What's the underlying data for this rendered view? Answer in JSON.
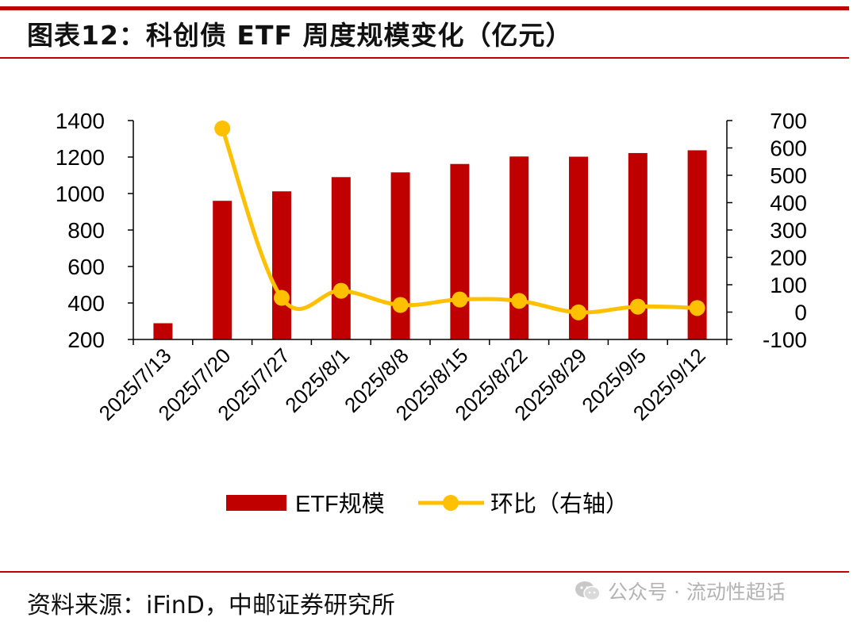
{
  "header": {
    "title": "图表12：科创债 ETF 周度规模变化（亿元）"
  },
  "chart_data": {
    "type": "bar+line",
    "categories": [
      "2025/7/13",
      "2025/7/20",
      "2025/7/27",
      "2025/8/1",
      "2025/8/8",
      "2025/8/15",
      "2025/8/22",
      "2025/8/29",
      "2025/9/5",
      "2025/9/12"
    ],
    "series": [
      {
        "name": "ETF规模",
        "type": "bar",
        "axis": "left",
        "color": "#c00000",
        "values": [
          289,
          960,
          1012,
          1090,
          1116,
          1162,
          1203,
          1202,
          1222,
          1237
        ]
      },
      {
        "name": "环比（右轴）",
        "type": "line",
        "axis": "right",
        "color": "#ffc000",
        "values": [
          null,
          671,
          52,
          78,
          26,
          46,
          41,
          -1,
          20,
          15
        ]
      }
    ],
    "left_axis": {
      "min": 200,
      "max": 1400,
      "ticks": [
        200,
        400,
        600,
        800,
        1000,
        1200,
        1400
      ]
    },
    "right_axis": {
      "min": -100,
      "max": 700,
      "ticks": [
        -100,
        0,
        100,
        200,
        300,
        400,
        500,
        600,
        700
      ]
    },
    "legend": [
      "ETF规模",
      "环比（右轴）"
    ],
    "legend_position": "bottom"
  },
  "footer": {
    "source": "资料来源：iFinD，中邮证券研究所"
  },
  "watermark": {
    "icon": "wechat-icon",
    "text": "公众号 · 流动性超话"
  }
}
